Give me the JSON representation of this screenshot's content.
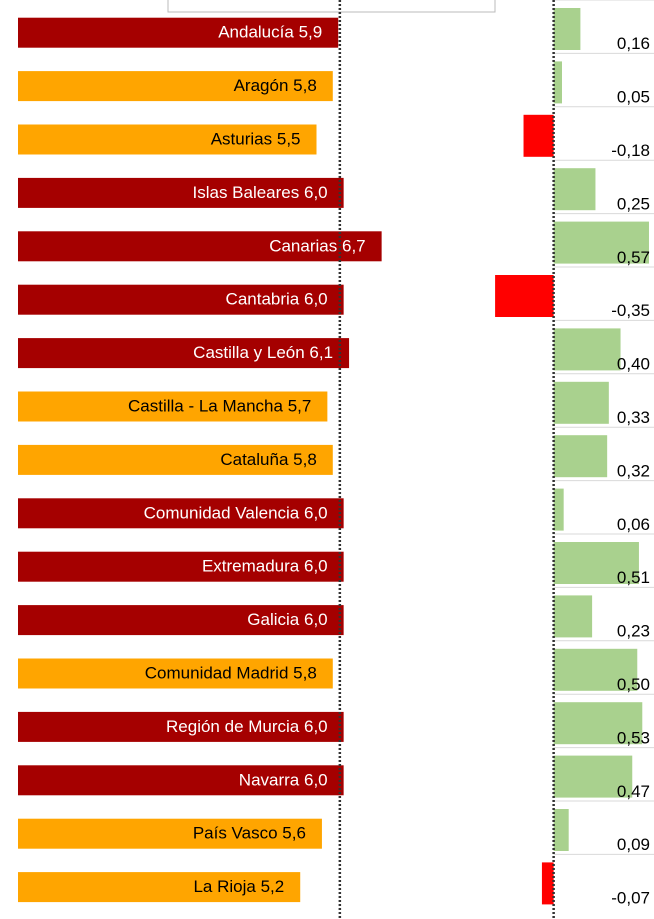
{
  "chart_data": [
    {
      "type": "barh",
      "categories": [
        "Andalucía",
        "Aragón",
        "Asturias",
        "Islas Baleares",
        "Canarias",
        "Cantabria",
        "Castilla y León",
        "Castilla - La Mancha",
        "Cataluña",
        "Comunidad Valencia",
        "Extremadura",
        "Galicia",
        "Comunidad Madrid",
        "Región de Murcia",
        "Navarra",
        "País Vasco",
        "La Rioja"
      ],
      "values": [
        5.9,
        5.8,
        5.5,
        6.0,
        6.7,
        6.0,
        6.1,
        5.7,
        5.8,
        6.0,
        6.0,
        6.0,
        5.8,
        6.0,
        6.0,
        5.6,
        5.2
      ],
      "value_labels": [
        "5,9",
        "5,8",
        "5,5",
        "6,0",
        "6,7",
        "6,0",
        "6,1",
        "5,7",
        "5,8",
        "6,0",
        "6,0",
        "6,0",
        "5,8",
        "6,0",
        "6,0",
        "5,6",
        "5,2"
      ],
      "colors": [
        "#a50000",
        "#ffa500",
        "#ffa500",
        "#a50000",
        "#a50000",
        "#a50000",
        "#a50000",
        "#ffa500",
        "#ffa500",
        "#a50000",
        "#a50000",
        "#a50000",
        "#ffa500",
        "#a50000",
        "#a50000",
        "#ffa500",
        "#ffa500"
      ],
      "reference_line": 5.93,
      "xlim": [
        0,
        11.7
      ]
    },
    {
      "type": "barh-diverging",
      "values": [
        0.16,
        0.05,
        -0.18,
        0.25,
        0.57,
        -0.35,
        0.4,
        0.33,
        0.32,
        0.06,
        0.51,
        0.23,
        0.5,
        0.53,
        0.47,
        0.09,
        -0.07
      ],
      "value_labels": [
        "0,16",
        "0,05",
        "-0,18",
        "0,25",
        "0,57",
        "-0,35",
        "0,40",
        "0,33",
        "0,32",
        "0,06",
        "0,51",
        "0,23",
        "0,50",
        "0,53",
        "0,47",
        "0,09",
        "-0,07"
      ],
      "positive_color": "#a9d18e",
      "negative_color": "#ff0000",
      "xlim": [
        -0.5,
        0.6
      ]
    }
  ]
}
